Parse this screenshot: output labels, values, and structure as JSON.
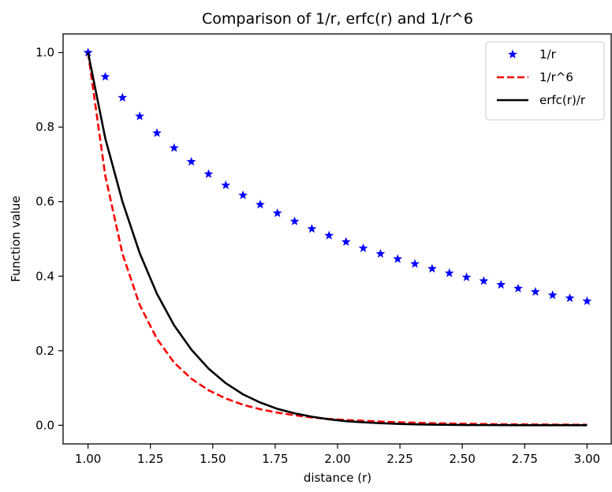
{
  "chart_data": {
    "type": "line",
    "title": "Comparison of 1/r, erfc(r) and 1/r^6",
    "xlabel": "distance (r)",
    "ylabel": "Function value",
    "xlim": [
      0.9,
      3.1
    ],
    "ylim": [
      -0.05,
      1.05
    ],
    "x_ticks": [
      1.0,
      1.25,
      1.5,
      1.75,
      2.0,
      2.25,
      2.5,
      2.75,
      3.0
    ],
    "x_tick_labels": [
      "1.00",
      "1.25",
      "1.50",
      "1.75",
      "2.00",
      "2.25",
      "2.50",
      "2.75",
      "3.00"
    ],
    "y_ticks": [
      0.0,
      0.2,
      0.4,
      0.6,
      0.8,
      1.0
    ],
    "y_tick_labels": [
      "0.0",
      "0.2",
      "0.4",
      "0.6",
      "0.8",
      "1.0"
    ],
    "grid": false,
    "legend_position": "top-right",
    "x": [
      1.0,
      1.069,
      1.138,
      1.207,
      1.276,
      1.345,
      1.414,
      1.483,
      1.552,
      1.621,
      1.69,
      1.759,
      1.828,
      1.897,
      1.966,
      2.034,
      2.103,
      2.172,
      2.241,
      2.31,
      2.379,
      2.448,
      2.517,
      2.586,
      2.655,
      2.724,
      2.793,
      2.862,
      2.931,
      3.0
    ],
    "series": [
      {
        "name": "1/r",
        "style": "star-markers",
        "color": "#0000ff",
        "values": [
          1.0,
          0.935,
          0.879,
          0.829,
          0.784,
          0.744,
          0.707,
          0.674,
          0.644,
          0.617,
          0.592,
          0.569,
          0.547,
          0.527,
          0.509,
          0.492,
          0.475,
          0.46,
          0.446,
          0.433,
          0.42,
          0.408,
          0.397,
          0.387,
          0.377,
          0.367,
          0.358,
          0.349,
          0.341,
          0.333
        ]
      },
      {
        "name": "1/r^6",
        "style": "dashed",
        "color": "#ff0000",
        "values": [
          1.0,
          0.67,
          0.46,
          0.323,
          0.232,
          0.168,
          0.125,
          0.094,
          0.072,
          0.055,
          0.043,
          0.034,
          0.027,
          0.021,
          0.017,
          0.014,
          0.012,
          0.01,
          0.008,
          0.007,
          0.0055,
          0.0046,
          0.0039,
          0.0033,
          0.0028,
          0.0024,
          0.0021,
          0.0018,
          0.0016,
          0.0014
        ]
      },
      {
        "name": "erfc(r)/r",
        "style": "solid",
        "color": "#000000",
        "values": [
          1.0,
          0.77,
          0.6,
          0.462,
          0.353,
          0.268,
          0.203,
          0.152,
          0.113,
          0.083,
          0.061,
          0.044,
          0.032,
          0.023,
          0.016,
          0.011,
          0.008,
          0.0055,
          0.0037,
          0.0025,
          0.0017,
          0.0011,
          0.0007,
          0.0005,
          0.0003,
          0.0002,
          0.0001,
          0.0001,
          0.0,
          0.0
        ]
      }
    ]
  }
}
